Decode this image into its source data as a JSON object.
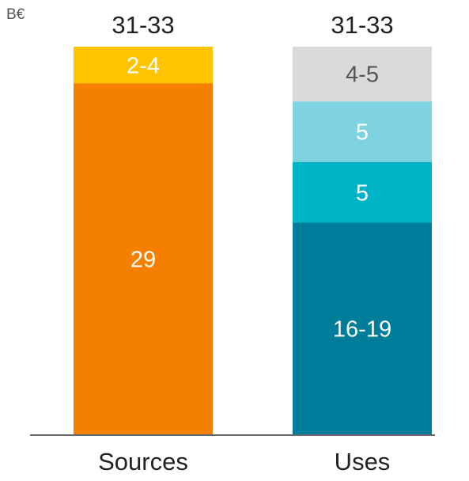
{
  "chart_data": {
    "type": "bar",
    "stacked": true,
    "unit": "B€",
    "categories": [
      "Sources",
      "Uses"
    ],
    "totals": [
      "31-33",
      "31-33"
    ],
    "bars": [
      {
        "category": "Sources",
        "total": "31-33",
        "segments": [
          {
            "label": "29",
            "value": 29,
            "color": "#f57f00",
            "text_color": "#ffffff"
          },
          {
            "label": "2-4",
            "value": 3,
            "color": "#ffc400",
            "text_color": "#ffffff"
          }
        ]
      },
      {
        "category": "Uses",
        "total": "31-33",
        "segments": [
          {
            "label": "16-19",
            "value": 17.5,
            "color": "#007d9a",
            "text_color": "#ffffff"
          },
          {
            "label": "5",
            "value": 5,
            "color": "#00b4c8",
            "text_color": "#ffffff"
          },
          {
            "label": "5",
            "value": 5,
            "color": "#7fd3e0",
            "text_color": "#ffffff"
          },
          {
            "label": "4-5",
            "value": 4.5,
            "color": "#dadada",
            "text_color": "#555555"
          }
        ]
      }
    ],
    "ylim": [
      0,
      32
    ],
    "grid": false,
    "legend": "none"
  }
}
